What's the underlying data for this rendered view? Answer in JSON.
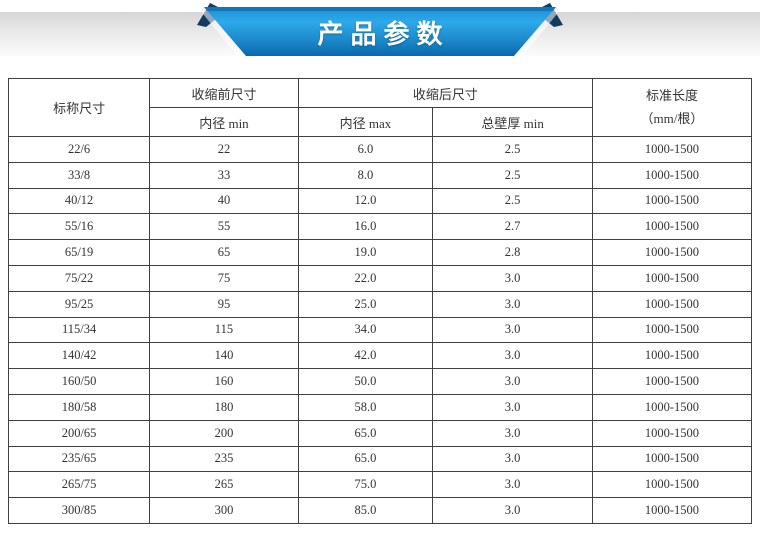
{
  "banner": {
    "title": "产品参数"
  },
  "colors": {
    "banner_blue_top": "#1b8fd0",
    "banner_blue_mid": "#2ea9ea",
    "banner_blue_bottom": "#0a68ad",
    "banner_navy": "#123c5f",
    "band_gray": "#d6d6d6",
    "table_border": "#404040",
    "text": "#333333"
  },
  "table": {
    "headers": {
      "nominal_size": "标称尺寸",
      "pre_shrink_group": "收缩前尺寸",
      "pre_inner_min": "内径 min",
      "post_shrink_group": "收缩后尺寸",
      "post_inner_max": "内径 max",
      "post_wall_min": "总壁厚 min",
      "std_length_line1": "标准长度",
      "std_length_line2": "（mm/根）"
    },
    "rows": [
      [
        "22/6",
        "22",
        "6.0",
        "2.5",
        "1000-1500"
      ],
      [
        "33/8",
        "33",
        "8.0",
        "2.5",
        "1000-1500"
      ],
      [
        "40/12",
        "40",
        "12.0",
        "2.5",
        "1000-1500"
      ],
      [
        "55/16",
        "55",
        "16.0",
        "2.7",
        "1000-1500"
      ],
      [
        "65/19",
        "65",
        "19.0",
        "2.8",
        "1000-1500"
      ],
      [
        "75/22",
        "75",
        "22.0",
        "3.0",
        "1000-1500"
      ],
      [
        "95/25",
        "95",
        "25.0",
        "3.0",
        "1000-1500"
      ],
      [
        "115/34",
        "115",
        "34.0",
        "3.0",
        "1000-1500"
      ],
      [
        "140/42",
        "140",
        "42.0",
        "3.0",
        "1000-1500"
      ],
      [
        "160/50",
        "160",
        "50.0",
        "3.0",
        "1000-1500"
      ],
      [
        "180/58",
        "180",
        "58.0",
        "3.0",
        "1000-1500"
      ],
      [
        "200/65",
        "200",
        "65.0",
        "3.0",
        "1000-1500"
      ],
      [
        "235/65",
        "235",
        "65.0",
        "3.0",
        "1000-1500"
      ],
      [
        "265/75",
        "265",
        "75.0",
        "3.0",
        "1000-1500"
      ],
      [
        "300/85",
        "300",
        "85.0",
        "3.0",
        "1000-1500"
      ]
    ]
  }
}
